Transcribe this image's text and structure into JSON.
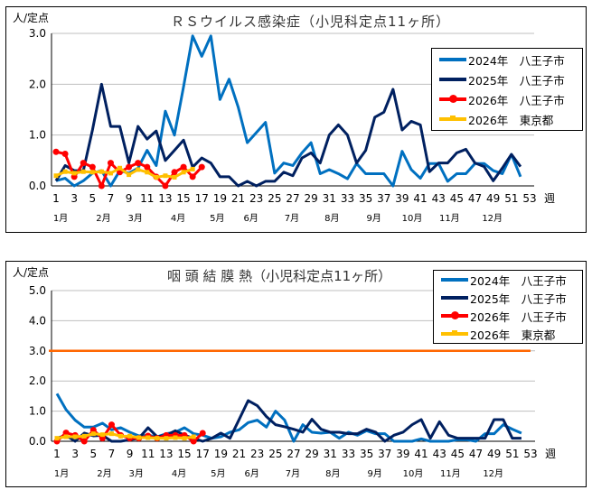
{
  "chart_data": [
    {
      "type": "line",
      "title": "ＲＳウイルス感染症（小児科定点11ヶ所）",
      "ylabel": "人/定点",
      "xlabel": "週",
      "ylim": [
        0,
        3.0
      ],
      "yticks": [
        "0.0",
        "1.0",
        "2.0",
        "3.0"
      ],
      "xlim": [
        1,
        53
      ],
      "xticks": [
        1,
        3,
        5,
        7,
        9,
        11,
        13,
        15,
        17,
        19,
        21,
        23,
        25,
        27,
        29,
        31,
        33,
        35,
        37,
        39,
        41,
        43,
        45,
        47,
        49,
        51,
        53
      ],
      "month_labels": [
        "1月",
        "2月",
        "3月",
        "4月",
        "5月",
        "6月",
        "7月",
        "8月",
        "9月",
        "10月",
        "11月",
        "12月"
      ],
      "grid": true,
      "legend_position": "right",
      "series": [
        {
          "name": "2024年　八王子市",
          "color": "#0070C0",
          "marker": "none",
          "values": [
            0.1,
            0.15,
            0.0,
            0.1,
            0.25,
            0.3,
            0.0,
            0.3,
            0.25,
            0.35,
            0.7,
            0.4,
            1.47,
            1.0,
            1.95,
            2.95,
            2.55,
            2.95,
            1.7,
            2.1,
            1.55,
            0.85,
            1.05,
            1.25,
            0.25,
            0.45,
            0.4,
            0.65,
            0.85,
            0.24,
            0.32,
            0.24,
            0.14,
            0.44,
            0.24,
            0.24,
            0.24,
            0.0,
            0.68,
            0.32,
            0.15,
            0.44,
            0.44,
            0.09,
            0.24,
            0.24,
            0.44,
            0.44,
            0.3,
            0.24,
            0.62,
            0.18
          ]
        },
        {
          "name": "2025年　八王子市",
          "color": "#002060",
          "marker": "none",
          "values": [
            0.1,
            0.4,
            0.3,
            0.3,
            1.1,
            2.0,
            1.17,
            1.17,
            0.45,
            1.17,
            0.92,
            1.08,
            0.5,
            0.7,
            0.9,
            0.37,
            0.55,
            0.45,
            0.18,
            0.18,
            0.0,
            0.09,
            0.0,
            0.09,
            0.09,
            0.27,
            0.2,
            0.55,
            0.65,
            0.45,
            1.0,
            1.2,
            1.0,
            0.45,
            0.7,
            1.35,
            1.45,
            1.9,
            1.1,
            1.27,
            1.2,
            0.28,
            0.45,
            0.45,
            0.65,
            0.72,
            0.45,
            0.38,
            0.1,
            0.35,
            0.62,
            0.38
          ]
        },
        {
          "name": "2026年　八王子市",
          "color": "#FF0000",
          "marker": "circle",
          "values": [
            0.67,
            0.63,
            0.18,
            0.45,
            0.37,
            0.0,
            0.45,
            0.27,
            0.37,
            0.45,
            0.37,
            0.18,
            0.0,
            0.27,
            0.37,
            0.18,
            0.37
          ]
        },
        {
          "name": "2026年　東京都",
          "color": "#FFC000",
          "marker": "square",
          "values": [
            0.2,
            0.28,
            0.25,
            0.28,
            0.27,
            0.28,
            0.25,
            0.35,
            0.22,
            0.32,
            0.27,
            0.17,
            0.2,
            0.17,
            0.27,
            0.33
          ]
        }
      ]
    },
    {
      "type": "line",
      "title": "咽 頭 結 膜 熱（小児科定点11ヶ所）",
      "ylabel": "人/定点",
      "xlabel": "週",
      "ylim": [
        0,
        5.0
      ],
      "yticks": [
        "0.0",
        "1.0",
        "2.0",
        "3.0",
        "4.0",
        "5.0"
      ],
      "xlim": [
        1,
        53
      ],
      "xticks": [
        1,
        3,
        5,
        7,
        9,
        11,
        13,
        15,
        17,
        19,
        21,
        23,
        25,
        27,
        29,
        31,
        33,
        35,
        37,
        39,
        41,
        43,
        45,
        47,
        49,
        51,
        53
      ],
      "month_labels": [
        "1月",
        "2月",
        "3月",
        "4月",
        "5月",
        "6月",
        "7月",
        "8月",
        "9月",
        "10月",
        "11月",
        "12月"
      ],
      "grid": true,
      "legend_position": "top-right",
      "reference_line": {
        "value": 3.0,
        "color": "#FF6600"
      },
      "series": [
        {
          "name": "2024年　八王子市",
          "color": "#0070C0",
          "marker": "none",
          "values": [
            1.58,
            1.05,
            0.7,
            0.47,
            0.47,
            0.6,
            0.38,
            0.45,
            0.3,
            0.18,
            0.2,
            0.15,
            0.25,
            0.3,
            0.45,
            0.25,
            0.2,
            0.1,
            0.15,
            0.3,
            0.38,
            0.62,
            0.7,
            0.47,
            1.0,
            0.7,
            0.0,
            0.55,
            0.3,
            0.27,
            0.3,
            0.1,
            0.3,
            0.2,
            0.35,
            0.25,
            0.25,
            0.0,
            0.0,
            0.0,
            0.08,
            0.0,
            0.0,
            0.0,
            0.05,
            0.05,
            0.0,
            0.25,
            0.25,
            0.55,
            0.4,
            0.27
          ]
        },
        {
          "name": "2025年　八王子市",
          "color": "#002060",
          "marker": "none",
          "values": [
            0.1,
            0.2,
            0.0,
            0.27,
            0.18,
            0.2,
            0.0,
            0.0,
            0.05,
            0.1,
            0.45,
            0.15,
            0.2,
            0.35,
            0.2,
            0.1,
            0.0,
            0.1,
            0.27,
            0.1,
            0.72,
            1.35,
            1.18,
            0.82,
            0.55,
            0.48,
            0.4,
            0.3,
            0.73,
            0.4,
            0.3,
            0.3,
            0.25,
            0.25,
            0.4,
            0.3,
            0.0,
            0.2,
            0.3,
            0.55,
            0.72,
            0.1,
            0.65,
            0.2,
            0.1,
            0.1,
            0.1,
            0.1,
            0.72,
            0.72,
            0.1,
            0.1
          ]
        },
        {
          "name": "2026年　八王子市",
          "color": "#FF0000",
          "marker": "circle",
          "values": [
            0.0,
            0.28,
            0.2,
            0.0,
            0.37,
            0.1,
            0.55,
            0.2,
            0.1,
            0.1,
            0.18,
            0.1,
            0.2,
            0.2,
            0.2,
            0.0,
            0.27
          ]
        },
        {
          "name": "2026年　東京都",
          "color": "#FFC000",
          "marker": "square",
          "values": [
            0.1,
            0.15,
            0.15,
            0.17,
            0.25,
            0.22,
            0.25,
            0.17,
            0.17,
            0.12,
            0.12,
            0.1,
            0.1,
            0.12,
            0.1,
            0.15
          ]
        }
      ]
    }
  ]
}
